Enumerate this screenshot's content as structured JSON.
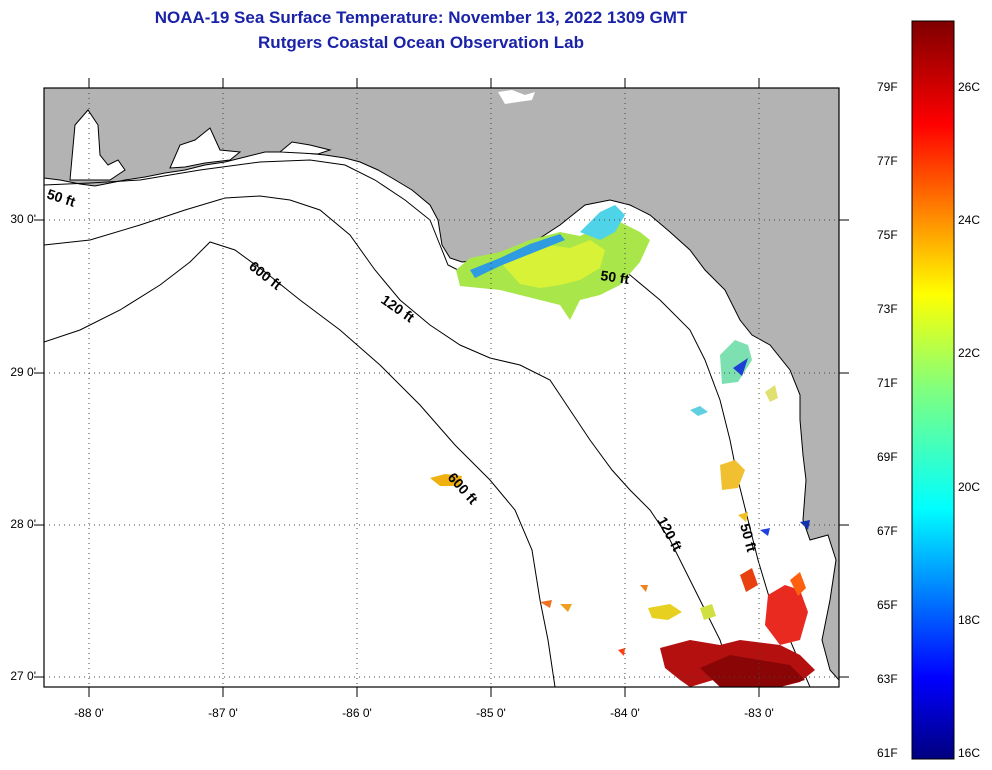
{
  "title_line1": "NOAA-19 Sea Surface Temperature:  November 13, 2022 1309 GMT",
  "title_line2": "Rutgers Coastal Ocean Observation Lab",
  "lat_labels": [
    "30 0'",
    "29 0'",
    "28 0'",
    "27 0'"
  ],
  "lon_labels": [
    "-88 0'",
    "-87 0'",
    "-86 0'",
    "-85 0'",
    "-84 0'",
    "-83 0'"
  ],
  "contour_labels": [
    "50 ft",
    "600 ft",
    "120 ft",
    "50 ft",
    "600 ft",
    "120 ft",
    "50 ft"
  ],
  "colorbar": {
    "fahrenheit": [
      "79F",
      "77F",
      "75F",
      "73F",
      "71F",
      "69F",
      "67F",
      "65F",
      "63F",
      "61F"
    ],
    "celsius": [
      "26C",
      "24C",
      "22C",
      "20C",
      "18C",
      "16C"
    ],
    "min_label_f": "61F",
    "min_label_c": "16C"
  },
  "colors": {
    "title": "#1a23a8",
    "land": "#b3b3b3",
    "ocean": "#ffffff"
  }
}
